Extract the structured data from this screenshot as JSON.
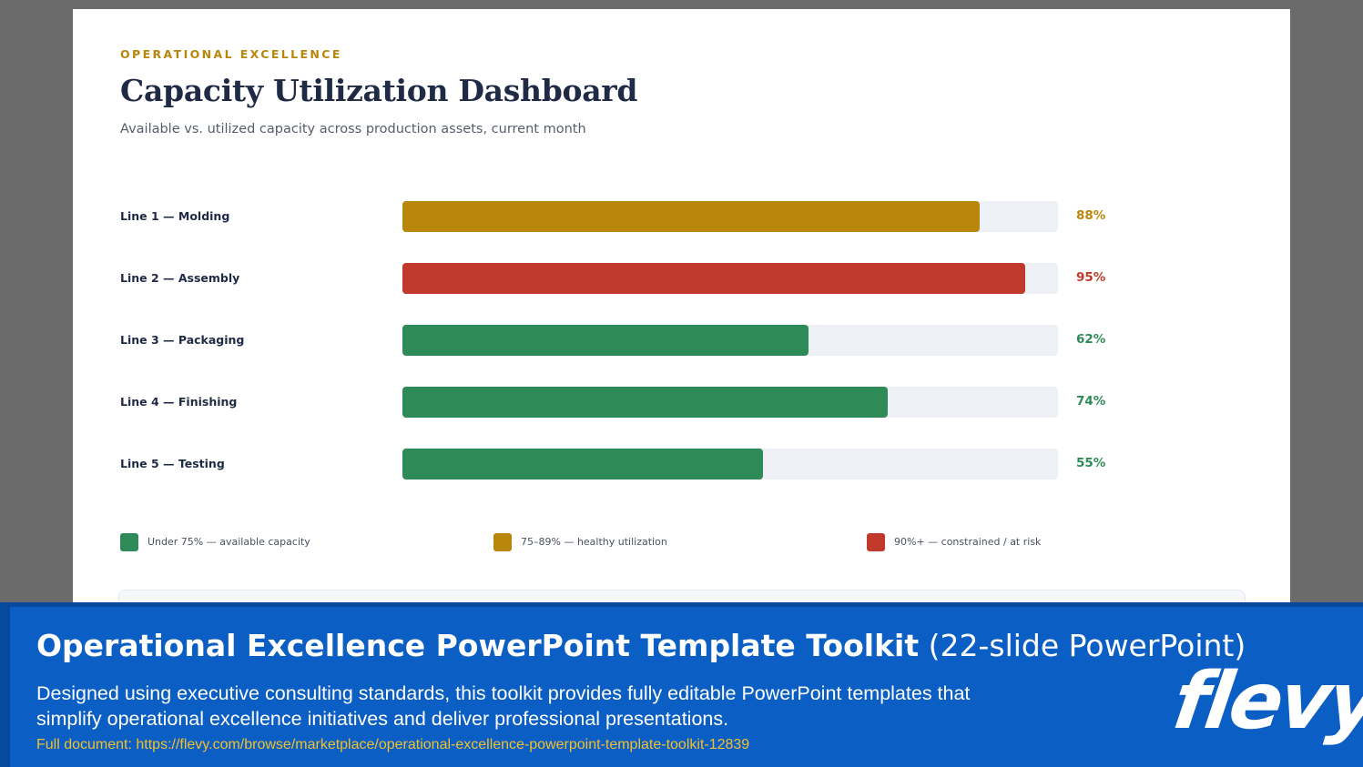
{
  "slide": {
    "eyebrow": "OPERATIONAL EXCELLENCE",
    "title": "Capacity Utilization Dashboard",
    "subtitle": "Available vs. utilized capacity across production assets, current month"
  },
  "chart_data": {
    "type": "bar",
    "orientation": "horizontal",
    "title": "Capacity Utilization Dashboard",
    "categories": [
      "Line 1 — Molding",
      "Line 2 — Assembly",
      "Line 3 — Packaging",
      "Line 4 — Finishing",
      "Line 5 — Testing"
    ],
    "values": [
      88,
      95,
      62,
      74,
      55
    ],
    "value_labels": [
      "88%",
      "95%",
      "62%",
      "74%",
      "55%"
    ],
    "bar_colors": [
      "#b8860b",
      "#c0392b",
      "#2e8b57",
      "#2e8b57",
      "#2e8b57"
    ],
    "xlim": [
      0,
      100
    ],
    "grid": false,
    "legend_position": "bottom",
    "legend": [
      {
        "label": "Under 75% — available capacity",
        "color": "#2e8b57"
      },
      {
        "label": "75–89% — healthy utilization",
        "color": "#b8860b"
      },
      {
        "label": "90%+ — constrained / at risk",
        "color": "#c0392b"
      }
    ]
  },
  "banner": {
    "title_bold": "Operational Excellence PowerPoint Template Toolkit",
    "title_light": "(22-slide PowerPoint)",
    "description": "Designed using executive consulting standards, this toolkit provides fully editable PowerPoint templates that simplify operational excellence initiatives and deliver professional presentations.",
    "link": "Full document: https://flevy.com/browse/marketplace/operational-excellence-powerpoint-template-toolkit-12839",
    "logo": "flevy"
  }
}
